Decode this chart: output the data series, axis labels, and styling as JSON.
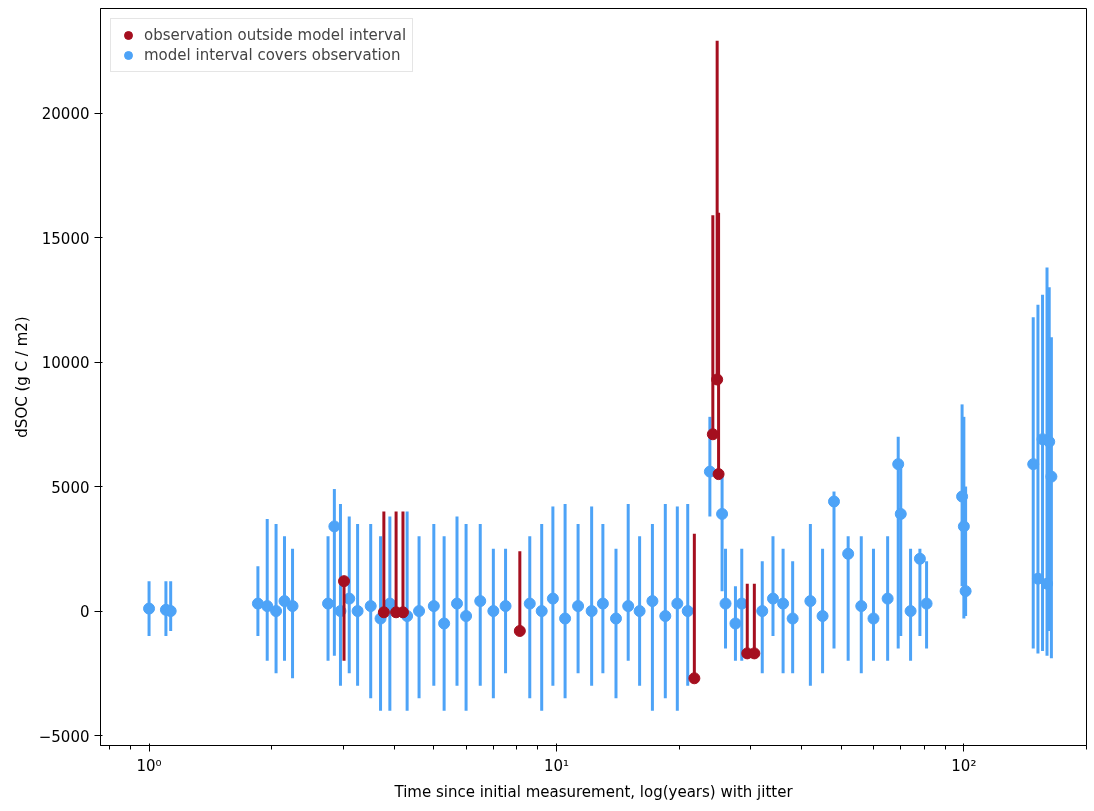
{
  "chart_data": {
    "type": "scatter",
    "xlabel": "Time since initial measurement, log(years) with jitter",
    "ylabel": "dSOC (g C / m2)",
    "log": "x",
    "xlim": [
      0.76,
      200
    ],
    "xticks": [
      {
        "value": 1,
        "label": "10⁰"
      },
      {
        "value": 10,
        "label": "10¹"
      },
      {
        "value": 100,
        "label": "10²"
      }
    ],
    "ylim": [
      -5400,
      24200
    ],
    "yticks": [
      {
        "value": -5000,
        "label": "−5000"
      },
      0,
      5000,
      10000,
      15000,
      20000
    ],
    "grid": false,
    "legend": "top left",
    "marker": "circle",
    "series": [
      {
        "name": "observation outside model interval",
        "color": "#a50f1f",
        "x": [
          3.01,
          3.77,
          4.04,
          4.2,
          8.13,
          21.8,
          24.2,
          24.8,
          25.0,
          29.4,
          30.6
        ],
        "values": [
          1200,
          -50,
          -50,
          -50,
          -800,
          -2700,
          7100,
          9300,
          5500,
          -1700,
          -1700
        ],
        "errors": [
          [
            -2000,
            1200
          ],
          [
            -50,
            4000
          ],
          [
            -50,
            4000
          ],
          [
            -50,
            4000
          ],
          [
            -800,
            2400
          ],
          [
            -2700,
            3100
          ],
          [
            7100,
            15900
          ],
          [
            9300,
            22900
          ],
          [
            5500,
            16000
          ],
          [
            -1700,
            1100
          ],
          [
            -1700,
            1100
          ]
        ]
      },
      {
        "name": "model interval covers observation",
        "color": "#4da3f7",
        "x": [
          1.0,
          1.1,
          1.13,
          1.85,
          1.95,
          2.05,
          2.15,
          2.25,
          2.75,
          2.85,
          2.95,
          3.1,
          3.25,
          3.5,
          3.7,
          3.9,
          4.3,
          4.6,
          5.0,
          5.3,
          5.7,
          6.0,
          6.5,
          7.0,
          7.5,
          8.6,
          9.2,
          9.8,
          10.5,
          11.3,
          12.2,
          13.0,
          14.0,
          15.0,
          16.0,
          17.2,
          18.5,
          19.8,
          21.0,
          23.8,
          25.5,
          26.0,
          27.5,
          28.5,
          32,
          34,
          36,
          38,
          42,
          45,
          48,
          52,
          56,
          60,
          65,
          69,
          70,
          74,
          78,
          81,
          99,
          100,
          101,
          148,
          152,
          156,
          160,
          162,
          164
        ],
        "values": [
          100,
          50,
          0,
          300,
          200,
          0,
          400,
          200,
          300,
          3400,
          0,
          500,
          0,
          200,
          -300,
          300,
          -200,
          0,
          200,
          -500,
          300,
          -200,
          400,
          0,
          200,
          300,
          0,
          500,
          -300,
          200,
          0,
          300,
          -300,
          200,
          0,
          400,
          -200,
          300,
          0,
          5600,
          3900,
          300,
          -500,
          300,
          0,
          500,
          300,
          -300,
          400,
          -200,
          4400,
          2300,
          200,
          -300,
          500,
          5900,
          3900,
          0,
          2100,
          300,
          4600,
          3400,
          800,
          5900,
          1300,
          6900,
          1100,
          6800,
          5400
        ],
        "errors": [
          [
            -1000,
            1200
          ],
          [
            -1000,
            1200
          ],
          [
            -800,
            1200
          ],
          [
            -1000,
            1800
          ],
          [
            -2000,
            3700
          ],
          [
            -2500,
            3500
          ],
          [
            -2000,
            3000
          ],
          [
            -2700,
            2500
          ],
          [
            -2000,
            3000
          ],
          [
            -1800,
            4900
          ],
          [
            -3000,
            4300
          ],
          [
            -2500,
            3800
          ],
          [
            -3000,
            3500
          ],
          [
            -3500,
            3500
          ],
          [
            -4000,
            3000
          ],
          [
            -4000,
            3800
          ],
          [
            -4000,
            4000
          ],
          [
            -3500,
            3000
          ],
          [
            -3000,
            3500
          ],
          [
            -4000,
            3000
          ],
          [
            -3000,
            3800
          ],
          [
            -4000,
            3500
          ],
          [
            -3000,
            3500
          ],
          [
            -3500,
            2500
          ],
          [
            -2500,
            2500
          ],
          [
            -3500,
            3000
          ],
          [
            -4000,
            3500
          ],
          [
            -3000,
            4200
          ],
          [
            -3500,
            4300
          ],
          [
            -2500,
            3500
          ],
          [
            -3000,
            4200
          ],
          [
            -2500,
            3500
          ],
          [
            -3500,
            2500
          ],
          [
            -2000,
            4300
          ],
          [
            -3000,
            3000
          ],
          [
            -4000,
            3500
          ],
          [
            -3500,
            4300
          ],
          [
            -4000,
            4200
          ],
          [
            -3000,
            4300
          ],
          [
            3800,
            7800
          ],
          [
            800,
            5500
          ],
          [
            -1500,
            2500
          ],
          [
            -2000,
            1000
          ],
          [
            -2000,
            2500
          ],
          [
            -2500,
            2000
          ],
          [
            -1000,
            3000
          ],
          [
            -2500,
            2500
          ],
          [
            -2500,
            2000
          ],
          [
            -3000,
            3500
          ],
          [
            -2500,
            2500
          ],
          [
            -1500,
            4800
          ],
          [
            -2000,
            3000
          ],
          [
            -2500,
            3000
          ],
          [
            -2000,
            2500
          ],
          [
            -2000,
            3000
          ],
          [
            -1500,
            7000
          ],
          [
            -1000,
            6000
          ],
          [
            -2000,
            2500
          ],
          [
            -1000,
            2500
          ],
          [
            -1500,
            2000
          ],
          [
            1000,
            8300
          ],
          [
            -300,
            7800
          ],
          [
            -200,
            5000
          ],
          [
            -1500,
            11800
          ],
          [
            -1700,
            12300
          ],
          [
            -1600,
            12700
          ],
          [
            -1800,
            13800
          ],
          [
            -800,
            13000
          ],
          [
            -1900,
            11000
          ]
        ]
      }
    ]
  }
}
